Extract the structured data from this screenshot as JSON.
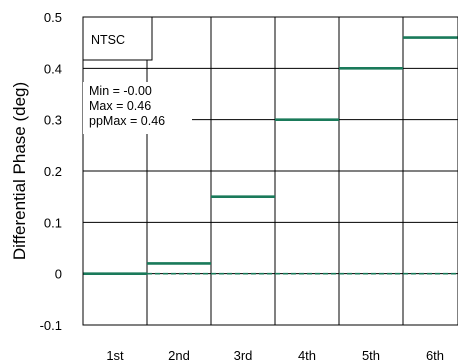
{
  "chart_data": {
    "type": "line",
    "title": "",
    "xlabel": "",
    "ylabel": "Differential Phase (deg)",
    "categories": [
      "1st",
      "2nd",
      "3rd",
      "4th",
      "5th",
      "6th"
    ],
    "ylim": [
      -0.1,
      0.5
    ],
    "yticks": [
      "0.5",
      "0.4",
      "0.3",
      "0.2",
      "0.1",
      "0",
      "-0.1"
    ],
    "grid": true,
    "series": [
      {
        "values": [
          0.0,
          0.02,
          0.15,
          0.3,
          0.4,
          0.46
        ],
        "style": "step",
        "color": "#1a7a5a"
      },
      {
        "values": [
          0.0,
          0.0,
          0.0,
          0.0,
          0.0,
          0.0
        ],
        "style": "dashed",
        "color": "#1a7a5a"
      }
    ],
    "annotations": {
      "standard": "NTSC",
      "min": "Min = -0.00",
      "max": "Max = 0.46",
      "ppmax": "ppMax = 0.46"
    }
  }
}
